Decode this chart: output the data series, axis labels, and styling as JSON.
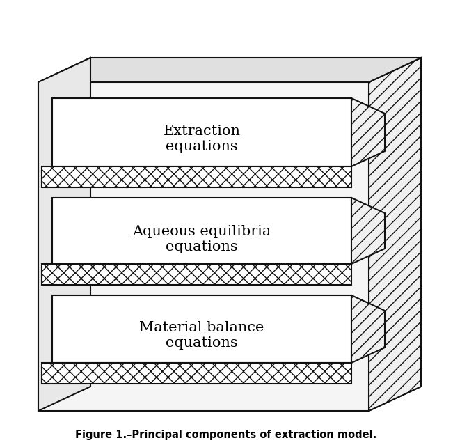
{
  "title": "Figure 1.–Principal components of extraction model.",
  "labels": [
    "Extraction\nequations",
    "Aqueous equilibria\nequations",
    "Material balance\nequations"
  ],
  "fig_width": 6.51,
  "fig_height": 6.39,
  "bg_color": "#ffffff",
  "box_line_color": "#111111",
  "hatch_cross": "xx",
  "hatch_diag": "//",
  "lw": 1.5
}
